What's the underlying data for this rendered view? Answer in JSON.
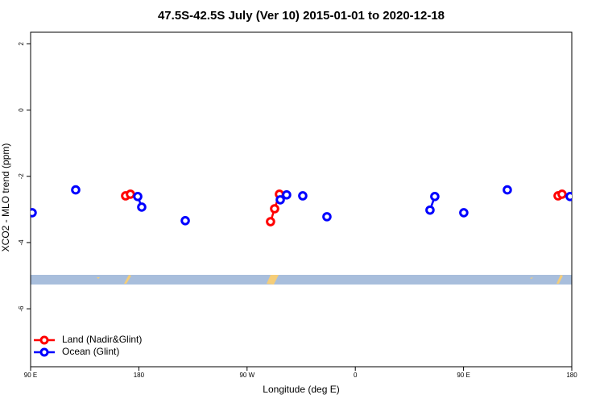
{
  "chart_data": {
    "type": "scatter",
    "title": "47.5S-42.5S July (Ver 10)   2015-01-01 to 2020-12-18",
    "x_label": "Longitude (deg E)",
    "y_label": "XCO2 - MLO trend (ppm)",
    "xlim": [
      90,
      540
    ],
    "xticks": [
      {
        "value": 90,
        "label": "90 E"
      },
      {
        "value": 180,
        "label": "180"
      },
      {
        "value": 270,
        "label": "90 W"
      },
      {
        "value": 360,
        "label": "0"
      },
      {
        "value": 450,
        "label": "90 E"
      },
      {
        "value": 540,
        "label": "180"
      }
    ],
    "ylim": [
      -7.75,
      2.35
    ],
    "yticks": [
      2,
      0,
      -2,
      -4,
      -6
    ],
    "legend": "bottom-left",
    "series": [
      {
        "name": "Land (Nadir&Glint)",
        "color": "#ff0000",
        "x": [
          169.0,
          173.0,
          null,
          289.5,
          292.9,
          296.9,
          null,
          528.6,
          531.9
        ],
        "values": [
          -2.59,
          -2.54,
          null,
          -3.37,
          -2.98,
          -2.54,
          null,
          -2.59,
          -2.54
        ]
      },
      {
        "name": "Ocean (Glint)",
        "color": "#0000ff",
        "x": [
          91.3,
          null,
          127.5,
          null,
          179.1,
          182.4,
          null,
          218.6,
          null,
          297.6,
          302.9,
          null,
          316.3,
          null,
          336.4,
          null,
          422.1,
          426.1,
          null,
          450.2,
          null,
          486.4,
          null,
          538.6
        ],
        "values": [
          -3.1,
          null,
          -2.41,
          null,
          -2.61,
          -2.93,
          null,
          -3.34,
          null,
          -2.71,
          -2.56,
          null,
          -2.59,
          null,
          -3.22,
          null,
          -3.02,
          -2.61,
          null,
          -3.1,
          null,
          -2.41,
          null,
          -2.61
        ]
      }
    ]
  }
}
